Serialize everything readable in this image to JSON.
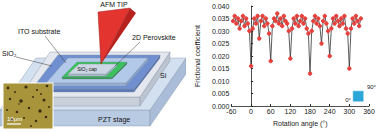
{
  "diagram": {
    "labels": {
      "tip": "AFM TIP",
      "perovskite": "2D Perovskite",
      "substrate": "ITO substrate",
      "oxide": "SiO₂",
      "cap": "SiO₂ cap",
      "silicon": "Si",
      "stage": "PZT stage"
    },
    "inset_scale": "10μm"
  },
  "chart_data": {
    "type": "line",
    "x_label": "Rotation angle (°)",
    "y_label": "Frictional coefficient",
    "x": [
      -55,
      -50,
      -45,
      -40,
      -35,
      -30,
      -25,
      -20,
      -15,
      -10,
      -5,
      0,
      5,
      10,
      15,
      20,
      25,
      30,
      35,
      40,
      45,
      50,
      55,
      60,
      65,
      70,
      75,
      80,
      85,
      90,
      95,
      100,
      105,
      110,
      115,
      120,
      125,
      130,
      135,
      140,
      145,
      150,
      155,
      160,
      165,
      170,
      175,
      180,
      185,
      190,
      195,
      200,
      205,
      210,
      215,
      220,
      225,
      230,
      235,
      240,
      245,
      250,
      255,
      260,
      265,
      270,
      275,
      280,
      285,
      290,
      295,
      300,
      305,
      310,
      315,
      320,
      325,
      330,
      335
    ],
    "values": [
      0.034,
      0.036,
      0.033,
      0.035,
      0.031,
      0.034,
      0.036,
      0.032,
      0.035,
      0.033,
      0.03,
      0.016,
      0.031,
      0.035,
      0.033,
      0.036,
      0.027,
      0.034,
      0.036,
      0.032,
      0.035,
      0.033,
      0.029,
      0.018,
      0.032,
      0.035,
      0.034,
      0.037,
      0.033,
      0.035,
      0.032,
      0.036,
      0.034,
      0.033,
      0.03,
      0.019,
      0.031,
      0.035,
      0.033,
      0.036,
      0.032,
      0.034,
      0.036,
      0.033,
      0.035,
      0.031,
      0.029,
      0.013,
      0.03,
      0.034,
      0.036,
      0.033,
      0.035,
      0.032,
      0.025,
      0.034,
      0.036,
      0.033,
      0.03,
      0.02,
      0.031,
      0.035,
      0.033,
      0.036,
      0.034,
      0.032,
      0.035,
      0.033,
      0.036,
      0.031,
      0.029,
      0.015,
      0.031,
      0.035,
      0.033,
      0.036,
      0.034,
      0.032,
      0.035
    ],
    "color": "#e5403c",
    "marker": "circle",
    "xlim": [
      -60,
      360
    ],
    "xticks": [
      -60,
      0,
      60,
      120,
      180,
      240,
      300,
      360
    ],
    "ylim": [
      0,
      0.04
    ],
    "yticks": [
      {
        "value": 0,
        "label": "0.000"
      },
      {
        "value": 0.005,
        "label": "0.005"
      },
      {
        "value": 0.01,
        "label": "0.010"
      },
      {
        "value": 0.015,
        "label": "0.015"
      },
      {
        "value": 0.02,
        "label": "0.020"
      },
      {
        "value": 0.025,
        "label": "0.025"
      },
      {
        "value": 0.03,
        "label": "0.030"
      },
      {
        "value": 0.035,
        "label": "0.035"
      },
      {
        "value": 0.04,
        "label": "0.040"
      }
    ],
    "annotations": [
      "90°",
      "0°"
    ],
    "grid": false
  }
}
